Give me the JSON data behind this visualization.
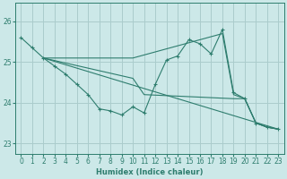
{
  "xlabel": "Humidex (Indice chaleur)",
  "bg_color": "#cce8e8",
  "grid_color": "#aacccc",
  "line_color": "#2e7d6e",
  "xlim": [
    -0.5,
    23.5
  ],
  "ylim": [
    22.75,
    26.45
  ],
  "yticks": [
    23,
    24,
    25,
    26
  ],
  "xticks": [
    0,
    1,
    2,
    3,
    4,
    5,
    6,
    7,
    8,
    9,
    10,
    11,
    12,
    13,
    14,
    15,
    16,
    17,
    18,
    19,
    20,
    21,
    22,
    23
  ],
  "line_main": {
    "x": [
      0,
      1,
      2,
      3,
      4,
      5,
      6,
      7,
      8,
      9,
      10,
      11,
      12,
      13,
      14,
      15,
      16,
      17,
      18,
      19,
      20,
      21,
      22,
      23
    ],
    "y": [
      25.6,
      25.35,
      25.1,
      24.9,
      24.7,
      24.45,
      24.2,
      23.85,
      23.8,
      23.7,
      23.9,
      23.75,
      24.45,
      25.05,
      25.15,
      25.55,
      25.45,
      25.2,
      25.8,
      24.25,
      24.1,
      23.5,
      23.4,
      23.35
    ]
  },
  "fan_lines": [
    {
      "x": [
        2,
        23
      ],
      "y": [
        25.1,
        23.35
      ]
    },
    {
      "x": [
        2,
        10,
        11,
        19,
        20,
        21,
        22,
        23
      ],
      "y": [
        25.1,
        24.6,
        24.2,
        24.1,
        24.1,
        23.5,
        23.4,
        23.35
      ]
    },
    {
      "x": [
        2,
        10,
        18,
        19,
        20,
        21,
        22,
        23
      ],
      "y": [
        25.1,
        25.1,
        25.7,
        24.2,
        24.1,
        23.5,
        23.4,
        23.35
      ]
    }
  ]
}
